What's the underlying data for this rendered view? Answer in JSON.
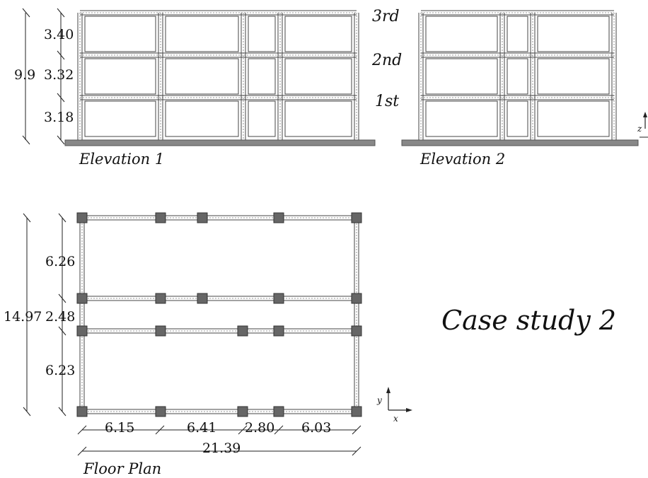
{
  "elevation1": {
    "caption": "Elevation 1",
    "total_height": "9.9",
    "storey_heights": [
      "3.40",
      "3.32",
      "3.18"
    ],
    "floor_labels": [
      "3rd",
      "2nd",
      "1st"
    ]
  },
  "elevation2": {
    "caption": "Elevation 2"
  },
  "plan": {
    "caption": "Floor Plan",
    "total_depth": "14.97",
    "depths": [
      "6.26",
      "2.48",
      "6.23"
    ],
    "spans": [
      "6.15",
      "6.41",
      "2.80",
      "6.03"
    ],
    "total_span": "21.39"
  },
  "case_label": "Case study 2",
  "axes": {
    "elevation": "z",
    "plan_x": "x",
    "plan_y": "y"
  },
  "colors": {
    "member": "#444444",
    "column": "#666666",
    "ground": "#888888"
  }
}
